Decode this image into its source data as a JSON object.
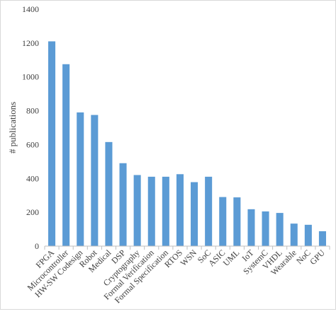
{
  "chart_data": {
    "type": "bar",
    "title": "",
    "xlabel": "",
    "ylabel": "# publications",
    "ylim": [
      0,
      1400
    ],
    "yticks": [
      0,
      200,
      400,
      600,
      800,
      1000,
      1200,
      1400
    ],
    "grid": false,
    "legend": "none",
    "bar_color": "#5B9BD5",
    "categories": [
      "FPGA",
      "Microcontroller",
      "HW-SW Codesign",
      "Robot",
      "Medical",
      "DSP",
      "Cryptography",
      "Formal Verification",
      "Formal Specification",
      "RTOS",
      "WSN",
      "SoC",
      "ASIC",
      "UML",
      "IoT",
      "SystemC",
      "VHDL",
      "Wearable",
      "NoC",
      "GPU"
    ],
    "values": [
      1210,
      1075,
      790,
      775,
      615,
      490,
      420,
      410,
      410,
      425,
      378,
      410,
      290,
      288,
      218,
      205,
      196,
      133,
      126,
      88
    ]
  }
}
